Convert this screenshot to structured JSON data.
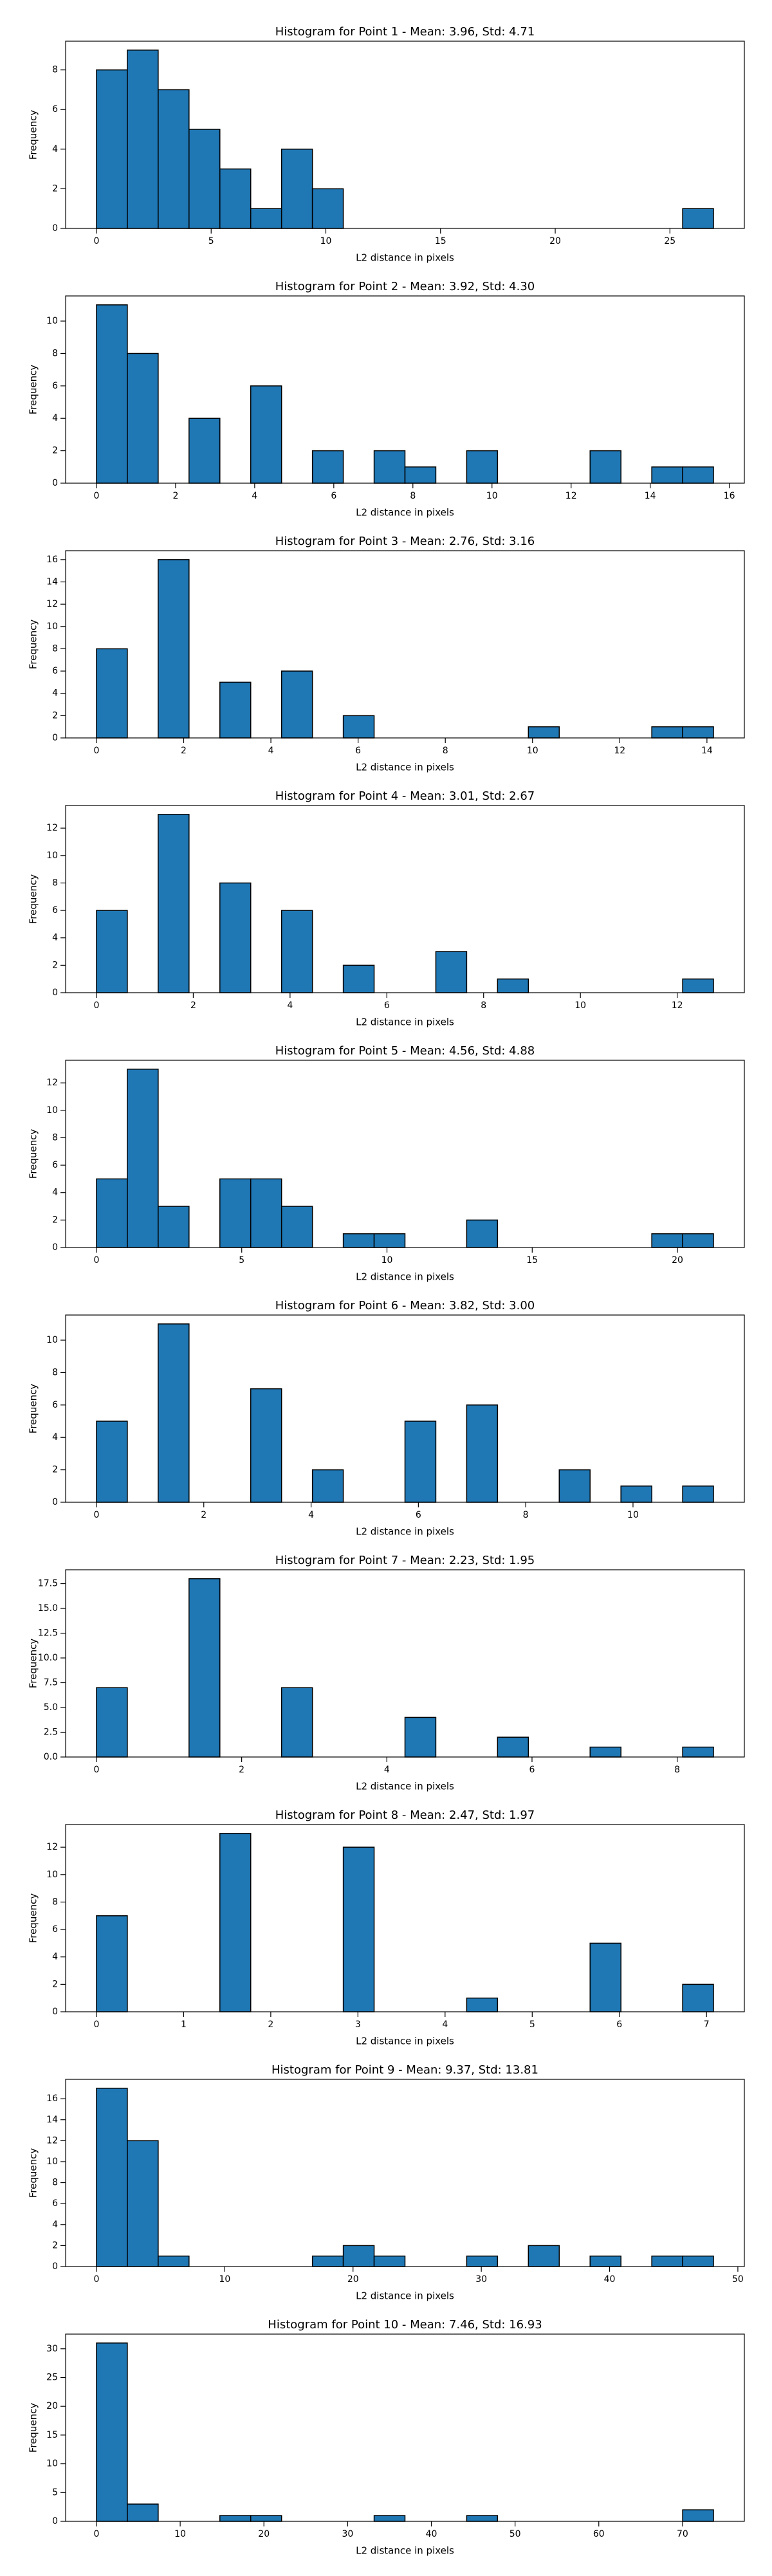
{
  "chart_data": [
    {
      "type": "histogram",
      "title": "Histogram for Point 1 - Mean: 3.96, Std: 4.71",
      "x_label": "L2 distance in pixels",
      "y_label": "Frequency",
      "color": "#1f77b4",
      "bins": [
        0,
        1.345,
        2.69,
        4.035,
        5.38,
        6.725,
        8.07,
        9.415,
        10.76,
        12.105,
        13.45,
        14.795,
        16.14,
        17.485,
        18.83,
        20.175,
        21.52,
        22.865,
        24.21,
        25.555,
        26.9
      ],
      "counts": [
        8,
        9,
        7,
        5,
        3,
        1,
        4,
        2,
        0,
        0,
        0,
        0,
        0,
        0,
        0,
        0,
        0,
        0,
        0,
        1
      ],
      "xlim": [
        -1.345,
        28.245
      ],
      "xticks": [
        0,
        5,
        10,
        15,
        20,
        25
      ],
      "ylim": [
        0,
        9.45
      ],
      "yticks": [
        0,
        2,
        4,
        6,
        8
      ]
    },
    {
      "type": "histogram",
      "title": "Histogram for Point 2 - Mean: 3.92, Std: 4.30",
      "x_label": "L2 distance in pixels",
      "y_label": "Frequency",
      "color": "#1f77b4",
      "bins": [
        0,
        0.78,
        1.56,
        2.34,
        3.12,
        3.9,
        4.68,
        5.46,
        6.24,
        7.02,
        7.8,
        8.58,
        9.36,
        10.14,
        10.92,
        11.7,
        12.48,
        13.26,
        14.04,
        14.82,
        15.6
      ],
      "counts": [
        11,
        8,
        0,
        4,
        0,
        6,
        0,
        2,
        0,
        2,
        1,
        0,
        2,
        0,
        0,
        0,
        2,
        0,
        1,
        1
      ],
      "xlim": [
        -0.78,
        16.38
      ],
      "xticks": [
        0,
        2,
        4,
        6,
        8,
        10,
        12,
        14,
        16
      ],
      "ylim": [
        0,
        11.55
      ],
      "yticks": [
        0,
        2,
        4,
        6,
        8,
        10
      ]
    },
    {
      "type": "histogram",
      "title": "Histogram for Point 3 - Mean: 2.76, Std: 3.16",
      "x_label": "L2 distance in pixels",
      "y_label": "Frequency",
      "color": "#1f77b4",
      "bins": [
        0,
        0.7075,
        1.415,
        2.1225,
        2.83,
        3.5375,
        4.245,
        4.9525,
        5.66,
        6.3675,
        7.075,
        7.7825,
        8.49,
        9.1975,
        9.905,
        10.6125,
        11.32,
        12.0275,
        12.735,
        13.4425,
        14.15
      ],
      "counts": [
        8,
        0,
        16,
        0,
        5,
        0,
        6,
        0,
        2,
        0,
        0,
        0,
        0,
        0,
        1,
        0,
        0,
        0,
        1,
        1
      ],
      "xlim": [
        -0.7075,
        14.8575
      ],
      "xticks": [
        0,
        2,
        4,
        6,
        8,
        10,
        12,
        14
      ],
      "ylim": [
        0,
        16.8
      ],
      "yticks": [
        0,
        2,
        4,
        6,
        8,
        10,
        12,
        14,
        16
      ]
    },
    {
      "type": "histogram",
      "title": "Histogram for Point 4 - Mean: 3.01, Std: 2.67",
      "x_label": "L2 distance in pixels",
      "y_label": "Frequency",
      "color": "#1f77b4",
      "bins": [
        0,
        0.6375,
        1.275,
        1.9125,
        2.55,
        3.1875,
        3.825,
        4.4625,
        5.1,
        5.7375,
        6.375,
        7.0125,
        7.65,
        8.2875,
        8.925,
        9.5625,
        10.2,
        10.8375,
        11.475,
        12.1125,
        12.75
      ],
      "counts": [
        6,
        0,
        13,
        0,
        8,
        0,
        6,
        0,
        2,
        0,
        0,
        3,
        0,
        1,
        0,
        0,
        0,
        0,
        0,
        1
      ],
      "xlim": [
        -0.6375,
        13.3875
      ],
      "xticks": [
        0,
        2,
        4,
        6,
        8,
        10,
        12
      ],
      "ylim": [
        0,
        13.65
      ],
      "yticks": [
        0,
        2,
        4,
        6,
        8,
        10,
        12
      ]
    },
    {
      "type": "histogram",
      "title": "Histogram for Point 5 - Mean: 4.56, Std: 4.88",
      "x_label": "L2 distance in pixels",
      "y_label": "Frequency",
      "color": "#1f77b4",
      "bins": [
        0,
        1.062,
        2.124,
        3.186,
        4.248,
        5.31,
        6.372,
        7.434,
        8.496,
        9.558,
        10.62,
        11.682,
        12.744,
        13.806,
        14.868,
        15.93,
        16.992,
        18.054,
        19.116,
        20.178,
        21.24
      ],
      "counts": [
        5,
        13,
        3,
        0,
        5,
        5,
        3,
        0,
        1,
        1,
        0,
        0,
        2,
        0,
        0,
        0,
        0,
        0,
        1,
        1
      ],
      "xlim": [
        -1.062,
        22.302
      ],
      "xticks": [
        0,
        5,
        10,
        15,
        20
      ],
      "ylim": [
        0,
        13.65
      ],
      "yticks": [
        0,
        2,
        4,
        6,
        8,
        10,
        12
      ]
    },
    {
      "type": "histogram",
      "title": "Histogram for Point 6 - Mean: 3.82, Std: 3.00",
      "x_label": "L2 distance in pixels",
      "y_label": "Frequency",
      "color": "#1f77b4",
      "bins": [
        0,
        0.575,
        1.15,
        1.725,
        2.3,
        2.875,
        3.45,
        4.025,
        4.6,
        5.175,
        5.75,
        6.325,
        6.9,
        7.475,
        8.05,
        8.625,
        9.2,
        9.775,
        10.35,
        10.925,
        11.5
      ],
      "counts": [
        5,
        0,
        11,
        0,
        0,
        7,
        0,
        2,
        0,
        0,
        5,
        0,
        6,
        0,
        0,
        2,
        0,
        1,
        0,
        1
      ],
      "xlim": [
        -0.575,
        12.075
      ],
      "xticks": [
        0,
        2,
        4,
        6,
        8,
        10
      ],
      "ylim": [
        0,
        11.55
      ],
      "yticks": [
        0,
        2,
        4,
        6,
        8,
        10
      ]
    },
    {
      "type": "histogram",
      "title": "Histogram for Point 7 - Mean: 2.23, Std: 1.95",
      "x_label": "L2 distance in pixels",
      "y_label": "Frequency",
      "color": "#1f77b4",
      "bins": [
        0,
        0.425,
        0.85,
        1.275,
        1.7,
        2.125,
        2.55,
        2.975,
        3.4,
        3.825,
        4.25,
        4.675,
        5.1,
        5.525,
        5.95,
        6.375,
        6.8,
        7.225,
        7.65,
        8.075,
        8.5
      ],
      "counts": [
        7,
        0,
        0,
        18,
        0,
        0,
        7,
        0,
        0,
        0,
        4,
        0,
        0,
        2,
        0,
        0,
        1,
        0,
        0,
        1
      ],
      "xlim": [
        -0.425,
        8.925
      ],
      "xticks": [
        0,
        2,
        4,
        6,
        8
      ],
      "ylim": [
        0,
        18.9
      ],
      "yticks": [
        {
          "value": 0,
          "label": "0.0"
        },
        {
          "value": 2.5,
          "label": "2.5"
        },
        {
          "value": 5,
          "label": "5.0"
        },
        {
          "value": 7.5,
          "label": "7.5"
        },
        {
          "value": 10,
          "label": "10.0"
        },
        {
          "value": 12.5,
          "label": "12.5"
        },
        {
          "value": 15,
          "label": "15.0"
        },
        {
          "value": 17.5,
          "label": "17.5"
        }
      ]
    },
    {
      "type": "histogram",
      "title": "Histogram for Point 8 - Mean: 2.47, Std: 1.97",
      "x_label": "L2 distance in pixels",
      "y_label": "Frequency",
      "color": "#1f77b4",
      "bins": [
        0,
        0.354,
        0.708,
        1.062,
        1.416,
        1.77,
        2.124,
        2.478,
        2.832,
        3.186,
        3.54,
        3.894,
        4.248,
        4.602,
        4.956,
        5.31,
        5.664,
        6.018,
        6.372,
        6.726,
        7.08
      ],
      "counts": [
        7,
        0,
        0,
        0,
        13,
        0,
        0,
        0,
        12,
        0,
        0,
        0,
        1,
        0,
        0,
        0,
        5,
        0,
        0,
        2
      ],
      "xlim": [
        -0.354,
        7.434
      ],
      "xticks": [
        0,
        1,
        2,
        3,
        4,
        5,
        6,
        7
      ],
      "ylim": [
        0,
        13.65
      ],
      "yticks": [
        0,
        2,
        4,
        6,
        8,
        10,
        12
      ]
    },
    {
      "type": "histogram",
      "title": "Histogram for Point 9 - Mean: 9.37, Std: 13.81",
      "x_label": "L2 distance in pixels",
      "y_label": "Frequency",
      "color": "#1f77b4",
      "bins": [
        0,
        2.405,
        4.81,
        7.215,
        9.62,
        12.025,
        14.43,
        16.835,
        19.24,
        21.645,
        24.05,
        26.455,
        28.86,
        31.265,
        33.67,
        36.075,
        38.48,
        40.885,
        43.29,
        45.695,
        48.1
      ],
      "counts": [
        17,
        12,
        1,
        0,
        0,
        0,
        0,
        1,
        2,
        1,
        0,
        0,
        1,
        0,
        2,
        0,
        1,
        0,
        1,
        1
      ],
      "xlim": [
        -2.405,
        50.505
      ],
      "xticks": [
        0,
        10,
        20,
        30,
        40,
        50
      ],
      "ylim": [
        0,
        17.85
      ],
      "yticks": [
        0,
        2,
        4,
        6,
        8,
        10,
        12,
        14,
        16
      ]
    },
    {
      "type": "histogram",
      "title": "Histogram for Point 10 - Mean: 7.46, Std: 16.93",
      "x_label": "L2 distance in pixels",
      "y_label": "Frequency",
      "color": "#1f77b4",
      "bins": [
        0,
        3.685,
        7.37,
        11.055,
        14.74,
        18.425,
        22.11,
        25.795,
        29.48,
        33.165,
        36.85,
        40.535,
        44.22,
        47.905,
        51.59,
        55.275,
        58.96,
        62.645,
        66.33,
        70.015,
        73.7
      ],
      "counts": [
        31,
        3,
        0,
        0,
        1,
        1,
        0,
        0,
        0,
        1,
        0,
        0,
        1,
        0,
        0,
        0,
        0,
        0,
        0,
        2
      ],
      "xlim": [
        -3.685,
        77.385
      ],
      "xticks": [
        0,
        10,
        20,
        30,
        40,
        50,
        60,
        70
      ],
      "ylim": [
        0,
        32.55
      ],
      "yticks": [
        0,
        5,
        10,
        15,
        20,
        25,
        30
      ]
    }
  ]
}
